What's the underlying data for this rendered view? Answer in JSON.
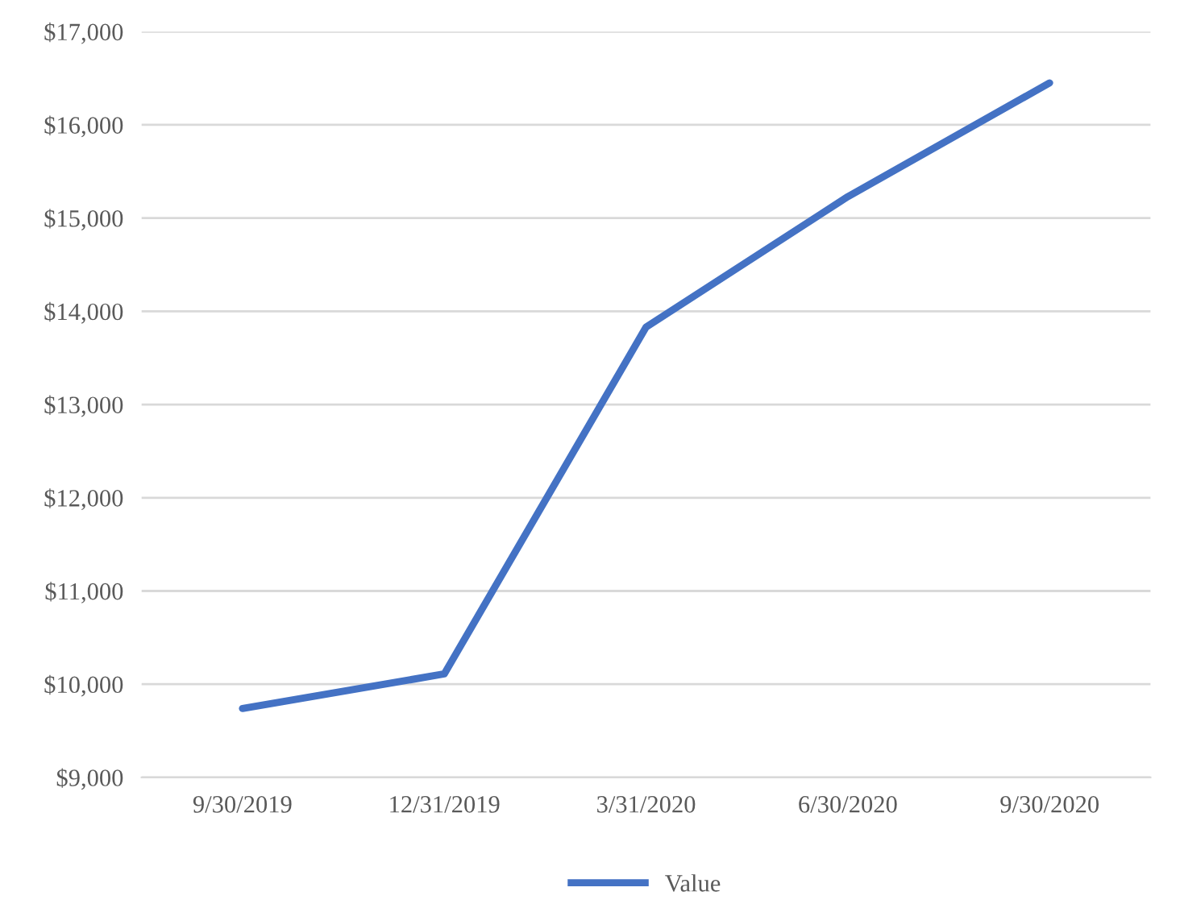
{
  "chart_data": {
    "type": "line",
    "categories": [
      "9/30/2019",
      "12/31/2019",
      "3/31/2020",
      "6/30/2020",
      "9/30/2020"
    ],
    "series": [
      {
        "name": "Value",
        "color": "#4472c4",
        "values": [
          9740,
          10110,
          13830,
          15230,
          16450
        ]
      }
    ],
    "ylim": [
      9000,
      17000
    ],
    "yticks": [
      {
        "value": 9000,
        "label": "$9,000"
      },
      {
        "value": 10000,
        "label": "$10,000"
      },
      {
        "value": 11000,
        "label": "$11,000"
      },
      {
        "value": 12000,
        "label": "$12,000"
      },
      {
        "value": 13000,
        "label": "$13,000"
      },
      {
        "value": 14000,
        "label": "$14,000"
      },
      {
        "value": 15000,
        "label": "$15,000"
      },
      {
        "value": 16000,
        "label": "$16,000"
      },
      {
        "value": 17000,
        "label": "$17,000"
      }
    ],
    "grid": "y",
    "legend": "bottom",
    "marker": "none",
    "line_style": "solid"
  }
}
